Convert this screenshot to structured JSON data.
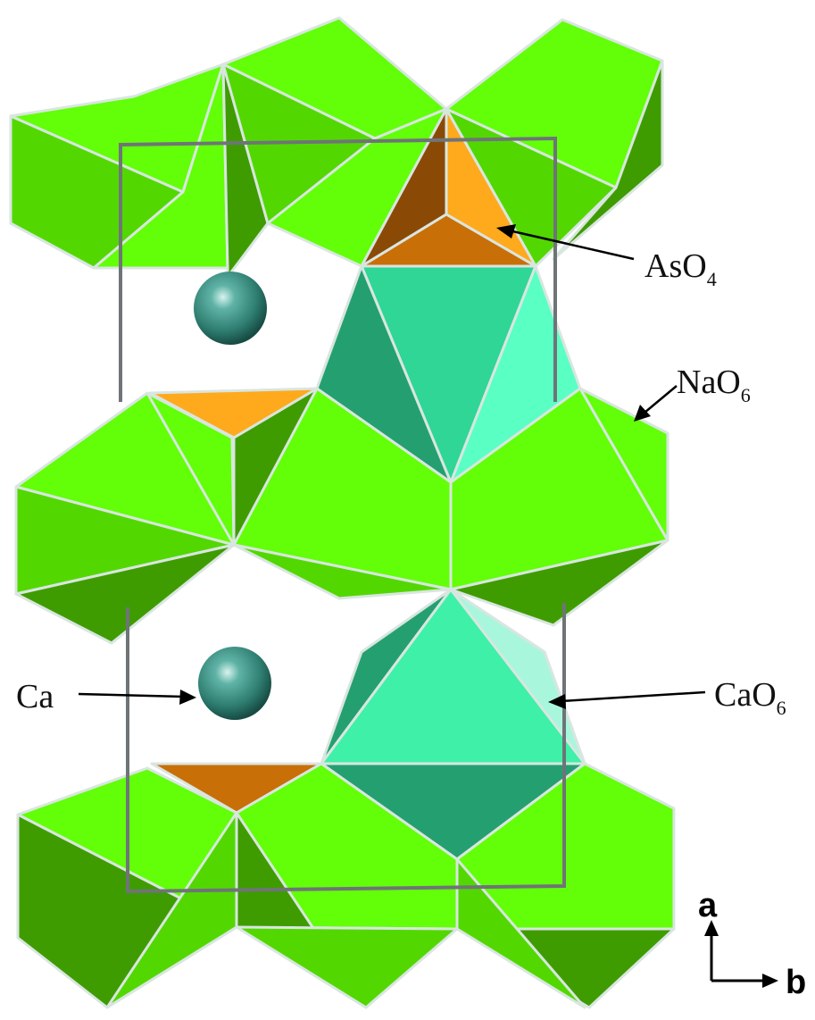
{
  "labels": {
    "aso4": {
      "main": "AsO",
      "sub": "4"
    },
    "nao6": {
      "main": "NaO",
      "sub": "6"
    },
    "cao6": {
      "main": "CaO",
      "sub": "6"
    },
    "ca": "Ca"
  },
  "axes": {
    "vertical": "a",
    "horizontal": "b"
  },
  "colors": {
    "nao6_light": "#62ff08",
    "nao6_mid": "#52d800",
    "nao6_dark": "#3f9c00",
    "cao6_light": "#3ff0a8",
    "cao6_mid": "#2fc58f",
    "cao6_dark": "#24a070",
    "aso4_light": "#ffa91c",
    "aso4_dark": "#8a4a06",
    "ca_atom": "#2f8f80"
  }
}
